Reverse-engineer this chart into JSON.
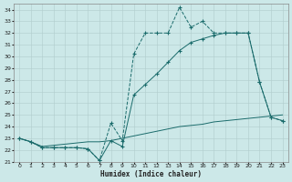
{
  "xlabel": "Humidex (Indice chaleur)",
  "xlim": [
    -0.5,
    23.5
  ],
  "ylim": [
    21,
    34.5
  ],
  "yticks": [
    21,
    22,
    23,
    24,
    25,
    26,
    27,
    28,
    29,
    30,
    31,
    32,
    33,
    34
  ],
  "xticks": [
    0,
    1,
    2,
    3,
    4,
    5,
    6,
    7,
    8,
    9,
    10,
    11,
    12,
    13,
    14,
    15,
    16,
    17,
    18,
    19,
    20,
    21,
    22,
    23
  ],
  "bg_color": "#cce8e8",
  "line_color": "#1a6b6b",
  "grid_color": "#b0cccc",
  "line1_x": [
    0,
    1,
    2,
    3,
    4,
    5,
    6,
    7,
    8,
    9,
    10,
    11,
    12,
    13,
    14,
    15,
    16,
    17,
    18,
    19,
    20,
    21,
    22,
    23
  ],
  "line1_y": [
    23.0,
    22.7,
    22.2,
    22.2,
    22.2,
    22.2,
    22.1,
    21.1,
    24.3,
    22.8,
    30.2,
    32.0,
    32.0,
    32.0,
    34.2,
    32.5,
    33.0,
    32.0,
    32.0,
    32.0,
    32.0,
    27.8,
    24.8,
    24.5
  ],
  "line2_x": [
    0,
    1,
    2,
    3,
    4,
    5,
    6,
    7,
    8,
    9,
    10,
    11,
    12,
    13,
    14,
    15,
    16,
    17,
    18,
    19,
    20,
    21,
    22,
    23
  ],
  "line2_y": [
    23.0,
    22.7,
    22.2,
    22.2,
    22.2,
    22.2,
    22.1,
    21.1,
    22.8,
    22.3,
    26.7,
    27.6,
    28.5,
    29.5,
    30.5,
    31.2,
    31.5,
    31.8,
    32.0,
    32.0,
    32.0,
    27.8,
    24.8,
    24.5
  ],
  "line3_x": [
    0,
    1,
    2,
    3,
    4,
    5,
    6,
    7,
    8,
    9,
    10,
    11,
    12,
    13,
    14,
    15,
    16,
    17,
    18,
    19,
    20,
    21,
    22,
    23
  ],
  "line3_y": [
    23.0,
    22.7,
    22.3,
    22.4,
    22.5,
    22.6,
    22.7,
    22.7,
    22.8,
    23.0,
    23.2,
    23.4,
    23.6,
    23.8,
    24.0,
    24.1,
    24.2,
    24.4,
    24.5,
    24.6,
    24.7,
    24.8,
    24.9,
    25.0
  ]
}
